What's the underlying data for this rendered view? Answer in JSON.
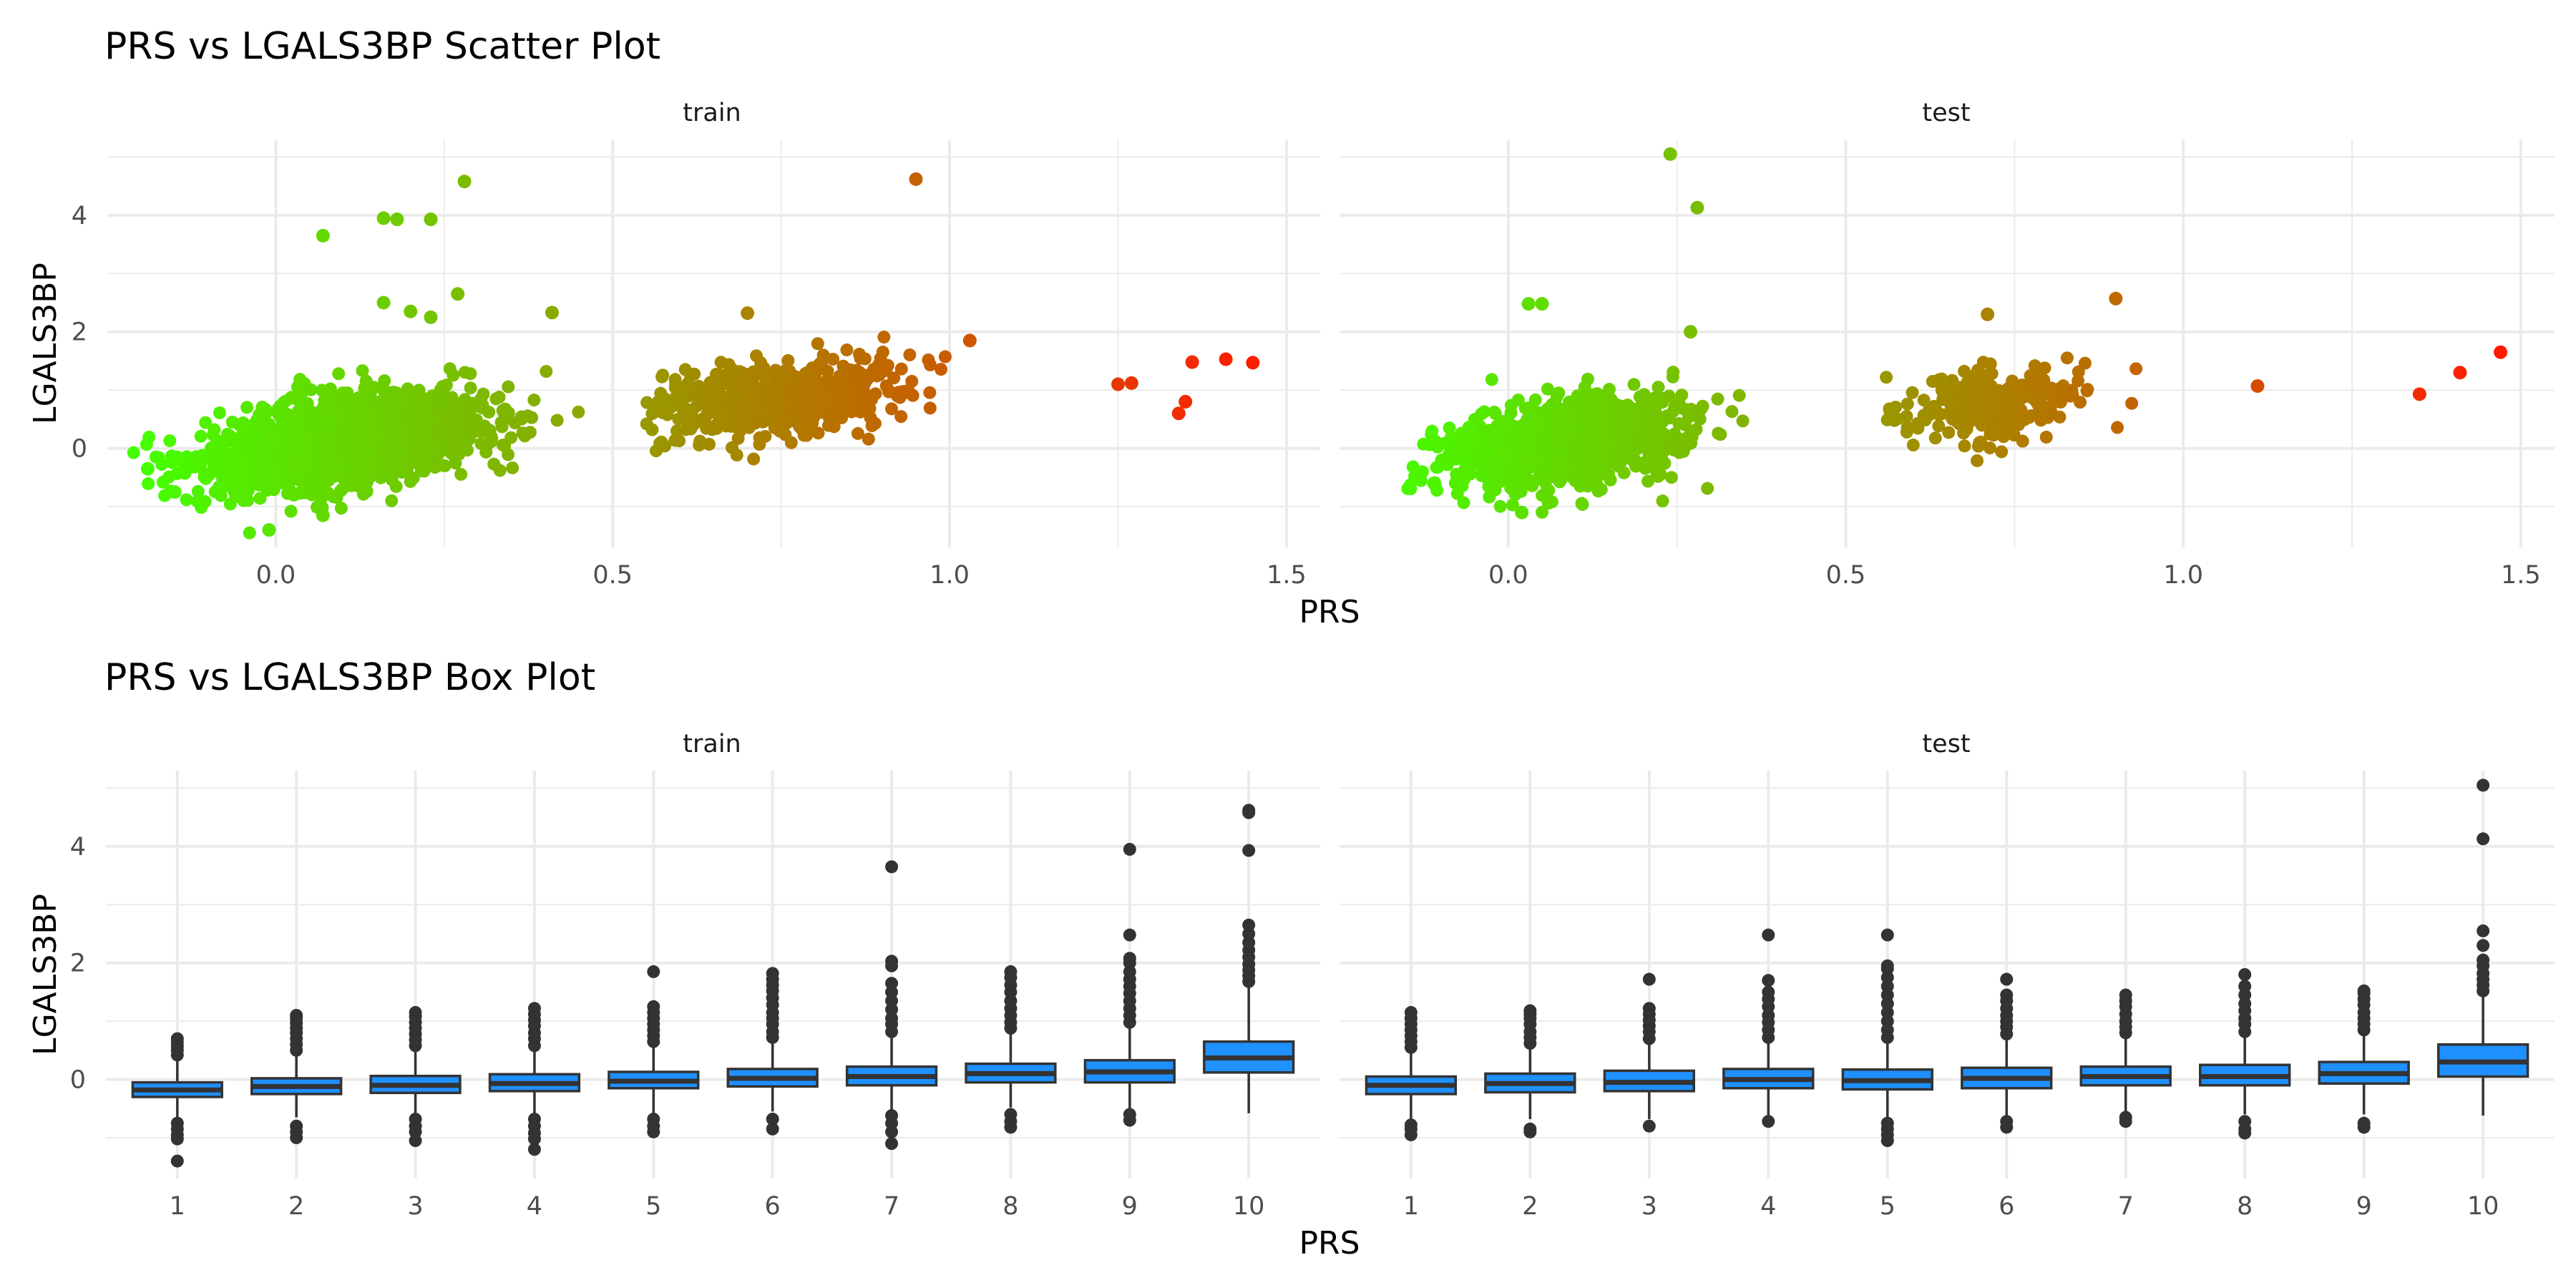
{
  "colors": {
    "gradient_low": "#44ff00",
    "gradient_high": "#ff1a00",
    "box_fill": "#1e90ff",
    "box_line": "#333333",
    "grid": "#ebebeb"
  },
  "chart_data": [
    {
      "type": "scatter",
      "title": "PRS vs LGALS3BP Scatter Plot",
      "xlabel": "PRS",
      "ylabel": "LGALS3BP",
      "facets": [
        "train",
        "test"
      ],
      "xlim": [
        -0.25,
        1.55
      ],
      "ylim": [
        -1.7,
        5.3
      ],
      "x_ticks": [
        "0.0",
        "0.5",
        "1.0",
        "1.5"
      ],
      "x_tick_values": [
        0,
        0.5,
        1.0,
        1.5
      ],
      "y_ticks": [
        "0",
        "2",
        "4"
      ],
      "y_tick_values": [
        0,
        2,
        4
      ],
      "color_by": "PRS",
      "grid": true,
      "note_clusters": "dense clouds approx: train x -0.2..0.45 y -1.4..2.6 and x 0.55..1.03 y -0.3..2.4; test x -0.15..0.45 y -1.0..2.5 and x 0.55..0.95 y -0.3..2.6",
      "series": [
        {
          "name": "train",
          "points": [
            [
              0.07,
              3.65
            ],
            [
              0.16,
              3.95
            ],
            [
              0.18,
              3.93
            ],
            [
              0.23,
              3.93
            ],
            [
              0.28,
              4.58
            ],
            [
              0.16,
              2.5
            ],
            [
              0.2,
              2.35
            ],
            [
              0.23,
              2.25
            ],
            [
              0.27,
              2.65
            ],
            [
              0.41,
              2.33
            ],
            [
              0.95,
              4.62
            ],
            [
              0.7,
              2.32
            ],
            [
              1.03,
              1.85
            ],
            [
              1.25,
              1.1
            ],
            [
              1.27,
              1.12
            ],
            [
              1.34,
              0.6
            ],
            [
              1.35,
              0.8
            ],
            [
              1.36,
              1.48
            ],
            [
              1.41,
              1.53
            ],
            [
              1.45,
              1.47
            ],
            [
              -0.19,
              -0.35
            ],
            [
              -0.15,
              -0.75
            ],
            [
              -0.01,
              -1.4
            ],
            [
              0.07,
              -1.15
            ]
          ]
        },
        {
          "name": "test",
          "points": [
            [
              0.24,
              5.05
            ],
            [
              0.28,
              4.13
            ],
            [
              0.03,
              2.48
            ],
            [
              0.05,
              2.48
            ],
            [
              0.27,
              2.0
            ],
            [
              0.9,
              2.57
            ],
            [
              0.71,
              2.3
            ],
            [
              1.11,
              1.07
            ],
            [
              1.35,
              0.93
            ],
            [
              1.41,
              1.3
            ],
            [
              1.47,
              1.65
            ],
            [
              -0.11,
              -0.6
            ],
            [
              0.02,
              -1.1
            ]
          ]
        }
      ]
    },
    {
      "type": "box",
      "title": "PRS vs LGALS3BP Box Plot",
      "xlabel": "PRS",
      "ylabel": "LGALS3BP",
      "facets": [
        "train",
        "test"
      ],
      "categories": [
        "1",
        "2",
        "3",
        "4",
        "5",
        "6",
        "7",
        "8",
        "9",
        "10"
      ],
      "ylim": [
        -1.7,
        5.3
      ],
      "y_ticks": [
        "0",
        "2",
        "4"
      ],
      "y_tick_values": [
        0,
        2,
        4
      ],
      "grid": true,
      "series": [
        {
          "name": "train",
          "boxes": [
            {
              "q1": -0.3,
              "median": -0.18,
              "q3": -0.05,
              "whisker_low": -0.68,
              "whisker_high": 0.32,
              "outliers": [
                0.42,
                0.5,
                0.57,
                0.63,
                0.7,
                -0.75,
                -0.85,
                -0.95,
                -1.02,
                -1.4
              ]
            },
            {
              "q1": -0.25,
              "median": -0.12,
              "q3": 0.02,
              "whisker_low": -0.65,
              "whisker_high": 0.42,
              "outliers": [
                0.5,
                0.6,
                0.7,
                0.8,
                0.88,
                0.97,
                1.05,
                1.1,
                -0.8,
                -0.9,
                -1.0
              ]
            },
            {
              "q1": -0.23,
              "median": -0.1,
              "q3": 0.06,
              "whisker_low": -0.62,
              "whisker_high": 0.48,
              "outliers": [
                0.58,
                0.68,
                0.78,
                0.88,
                0.98,
                1.08,
                1.15,
                -0.68,
                -0.8,
                -0.9,
                -1.05
              ]
            },
            {
              "q1": -0.2,
              "median": -0.07,
              "q3": 0.09,
              "whisker_low": -0.6,
              "whisker_high": 0.5,
              "outliers": [
                0.58,
                0.7,
                0.8,
                0.92,
                1.02,
                1.12,
                1.22,
                -0.68,
                -0.8,
                -0.92,
                -1.02,
                -1.2
              ]
            },
            {
              "q1": -0.15,
              "median": -0.03,
              "q3": 0.13,
              "whisker_low": -0.58,
              "whisker_high": 0.55,
              "outliers": [
                0.65,
                0.75,
                0.85,
                0.95,
                1.05,
                1.15,
                1.25,
                1.85,
                -0.68,
                -0.8,
                -0.9
              ]
            },
            {
              "q1": -0.12,
              "median": 0.02,
              "q3": 0.18,
              "whisker_low": -0.55,
              "whisker_high": 0.62,
              "outliers": [
                0.72,
                0.82,
                0.95,
                1.05,
                1.15,
                1.28,
                1.4,
                1.52,
                1.62,
                1.72,
                1.82,
                -0.68,
                -0.85
              ]
            },
            {
              "q1": -0.1,
              "median": 0.05,
              "q3": 0.22,
              "whisker_low": -0.52,
              "whisker_high": 0.72,
              "outliers": [
                0.82,
                0.95,
                1.05,
                1.2,
                1.35,
                1.5,
                1.65,
                1.95,
                2.03,
                3.65,
                -0.62,
                -0.75,
                -0.9,
                -1.1
              ]
            },
            {
              "q1": -0.05,
              "median": 0.1,
              "q3": 0.27,
              "whisker_low": -0.48,
              "whisker_high": 0.78,
              "outliers": [
                0.88,
                0.98,
                1.1,
                1.22,
                1.35,
                1.5,
                1.62,
                1.75,
                1.85,
                -0.6,
                -0.72,
                -0.82
              ]
            },
            {
              "q1": -0.05,
              "median": 0.13,
              "q3": 0.33,
              "whisker_low": -0.5,
              "whisker_high": 0.88,
              "outliers": [
                0.98,
                1.1,
                1.22,
                1.35,
                1.48,
                1.6,
                1.72,
                1.85,
                2.0,
                2.08,
                2.48,
                3.95,
                -0.6,
                -0.7
              ]
            },
            {
              "q1": 0.12,
              "median": 0.37,
              "q3": 0.65,
              "whisker_low": -0.58,
              "whisker_high": 1.58,
              "outliers": [
                1.68,
                1.78,
                1.88,
                1.98,
                2.1,
                2.22,
                2.35,
                2.5,
                2.65,
                3.93,
                4.58,
                4.62
              ]
            }
          ]
        },
        {
          "name": "test",
          "boxes": [
            {
              "q1": -0.25,
              "median": -0.1,
              "q3": 0.05,
              "whisker_low": -0.68,
              "whisker_high": 0.45,
              "outliers": [
                0.55,
                0.65,
                0.75,
                0.85,
                0.95,
                1.05,
                1.15,
                -0.78,
                -0.85,
                -0.95
              ]
            },
            {
              "q1": -0.22,
              "median": -0.07,
              "q3": 0.1,
              "whisker_low": -0.68,
              "whisker_high": 0.52,
              "outliers": [
                0.62,
                0.72,
                0.82,
                0.95,
                1.05,
                1.12,
                1.18,
                -0.85,
                -0.9
              ]
            },
            {
              "q1": -0.2,
              "median": -0.05,
              "q3": 0.15,
              "whisker_low": -0.68,
              "whisker_high": 0.6,
              "outliers": [
                0.7,
                0.82,
                0.92,
                1.02,
                1.12,
                1.22,
                1.72,
                -0.8
              ]
            },
            {
              "q1": -0.15,
              "median": 0.0,
              "q3": 0.18,
              "whisker_low": -0.62,
              "whisker_high": 0.62,
              "outliers": [
                0.72,
                0.85,
                0.98,
                1.1,
                1.25,
                1.38,
                1.5,
                1.7,
                2.48,
                -0.72
              ]
            },
            {
              "q1": -0.17,
              "median": -0.02,
              "q3": 0.17,
              "whisker_low": -0.65,
              "whisker_high": 0.62,
              "outliers": [
                0.72,
                0.85,
                1.0,
                1.15,
                1.3,
                1.45,
                1.6,
                1.75,
                1.9,
                1.95,
                2.48,
                -0.75,
                -0.85,
                -0.95,
                -1.05
              ]
            },
            {
              "q1": -0.15,
              "median": 0.02,
              "q3": 0.2,
              "whisker_low": -0.62,
              "whisker_high": 0.68,
              "outliers": [
                0.78,
                0.9,
                1.0,
                1.1,
                1.22,
                1.35,
                1.45,
                1.72,
                -0.72,
                -0.82
              ]
            },
            {
              "q1": -0.1,
              "median": 0.05,
              "q3": 0.22,
              "whisker_low": -0.58,
              "whisker_high": 0.7,
              "outliers": [
                0.8,
                0.9,
                1.0,
                1.12,
                1.25,
                1.35,
                1.45,
                -0.65,
                -0.72
              ]
            },
            {
              "q1": -0.1,
              "median": 0.05,
              "q3": 0.25,
              "whisker_low": -0.6,
              "whisker_high": 0.72,
              "outliers": [
                0.82,
                0.95,
                1.05,
                1.18,
                1.3,
                1.45,
                1.6,
                1.8,
                -0.72,
                -0.85,
                -0.92
              ]
            },
            {
              "q1": -0.07,
              "median": 0.1,
              "q3": 0.3,
              "whisker_low": -0.6,
              "whisker_high": 0.75,
              "outliers": [
                0.85,
                0.95,
                1.05,
                1.15,
                1.28,
                1.38,
                1.48,
                1.52,
                -0.75,
                -0.82
              ]
            },
            {
              "q1": 0.05,
              "median": 0.3,
              "q3": 0.6,
              "whisker_low": -0.62,
              "whisker_high": 1.42,
              "outliers": [
                1.52,
                1.62,
                1.72,
                1.82,
                1.95,
                2.05,
                2.3,
                2.55,
                4.13,
                5.05
              ]
            }
          ]
        }
      ]
    }
  ]
}
